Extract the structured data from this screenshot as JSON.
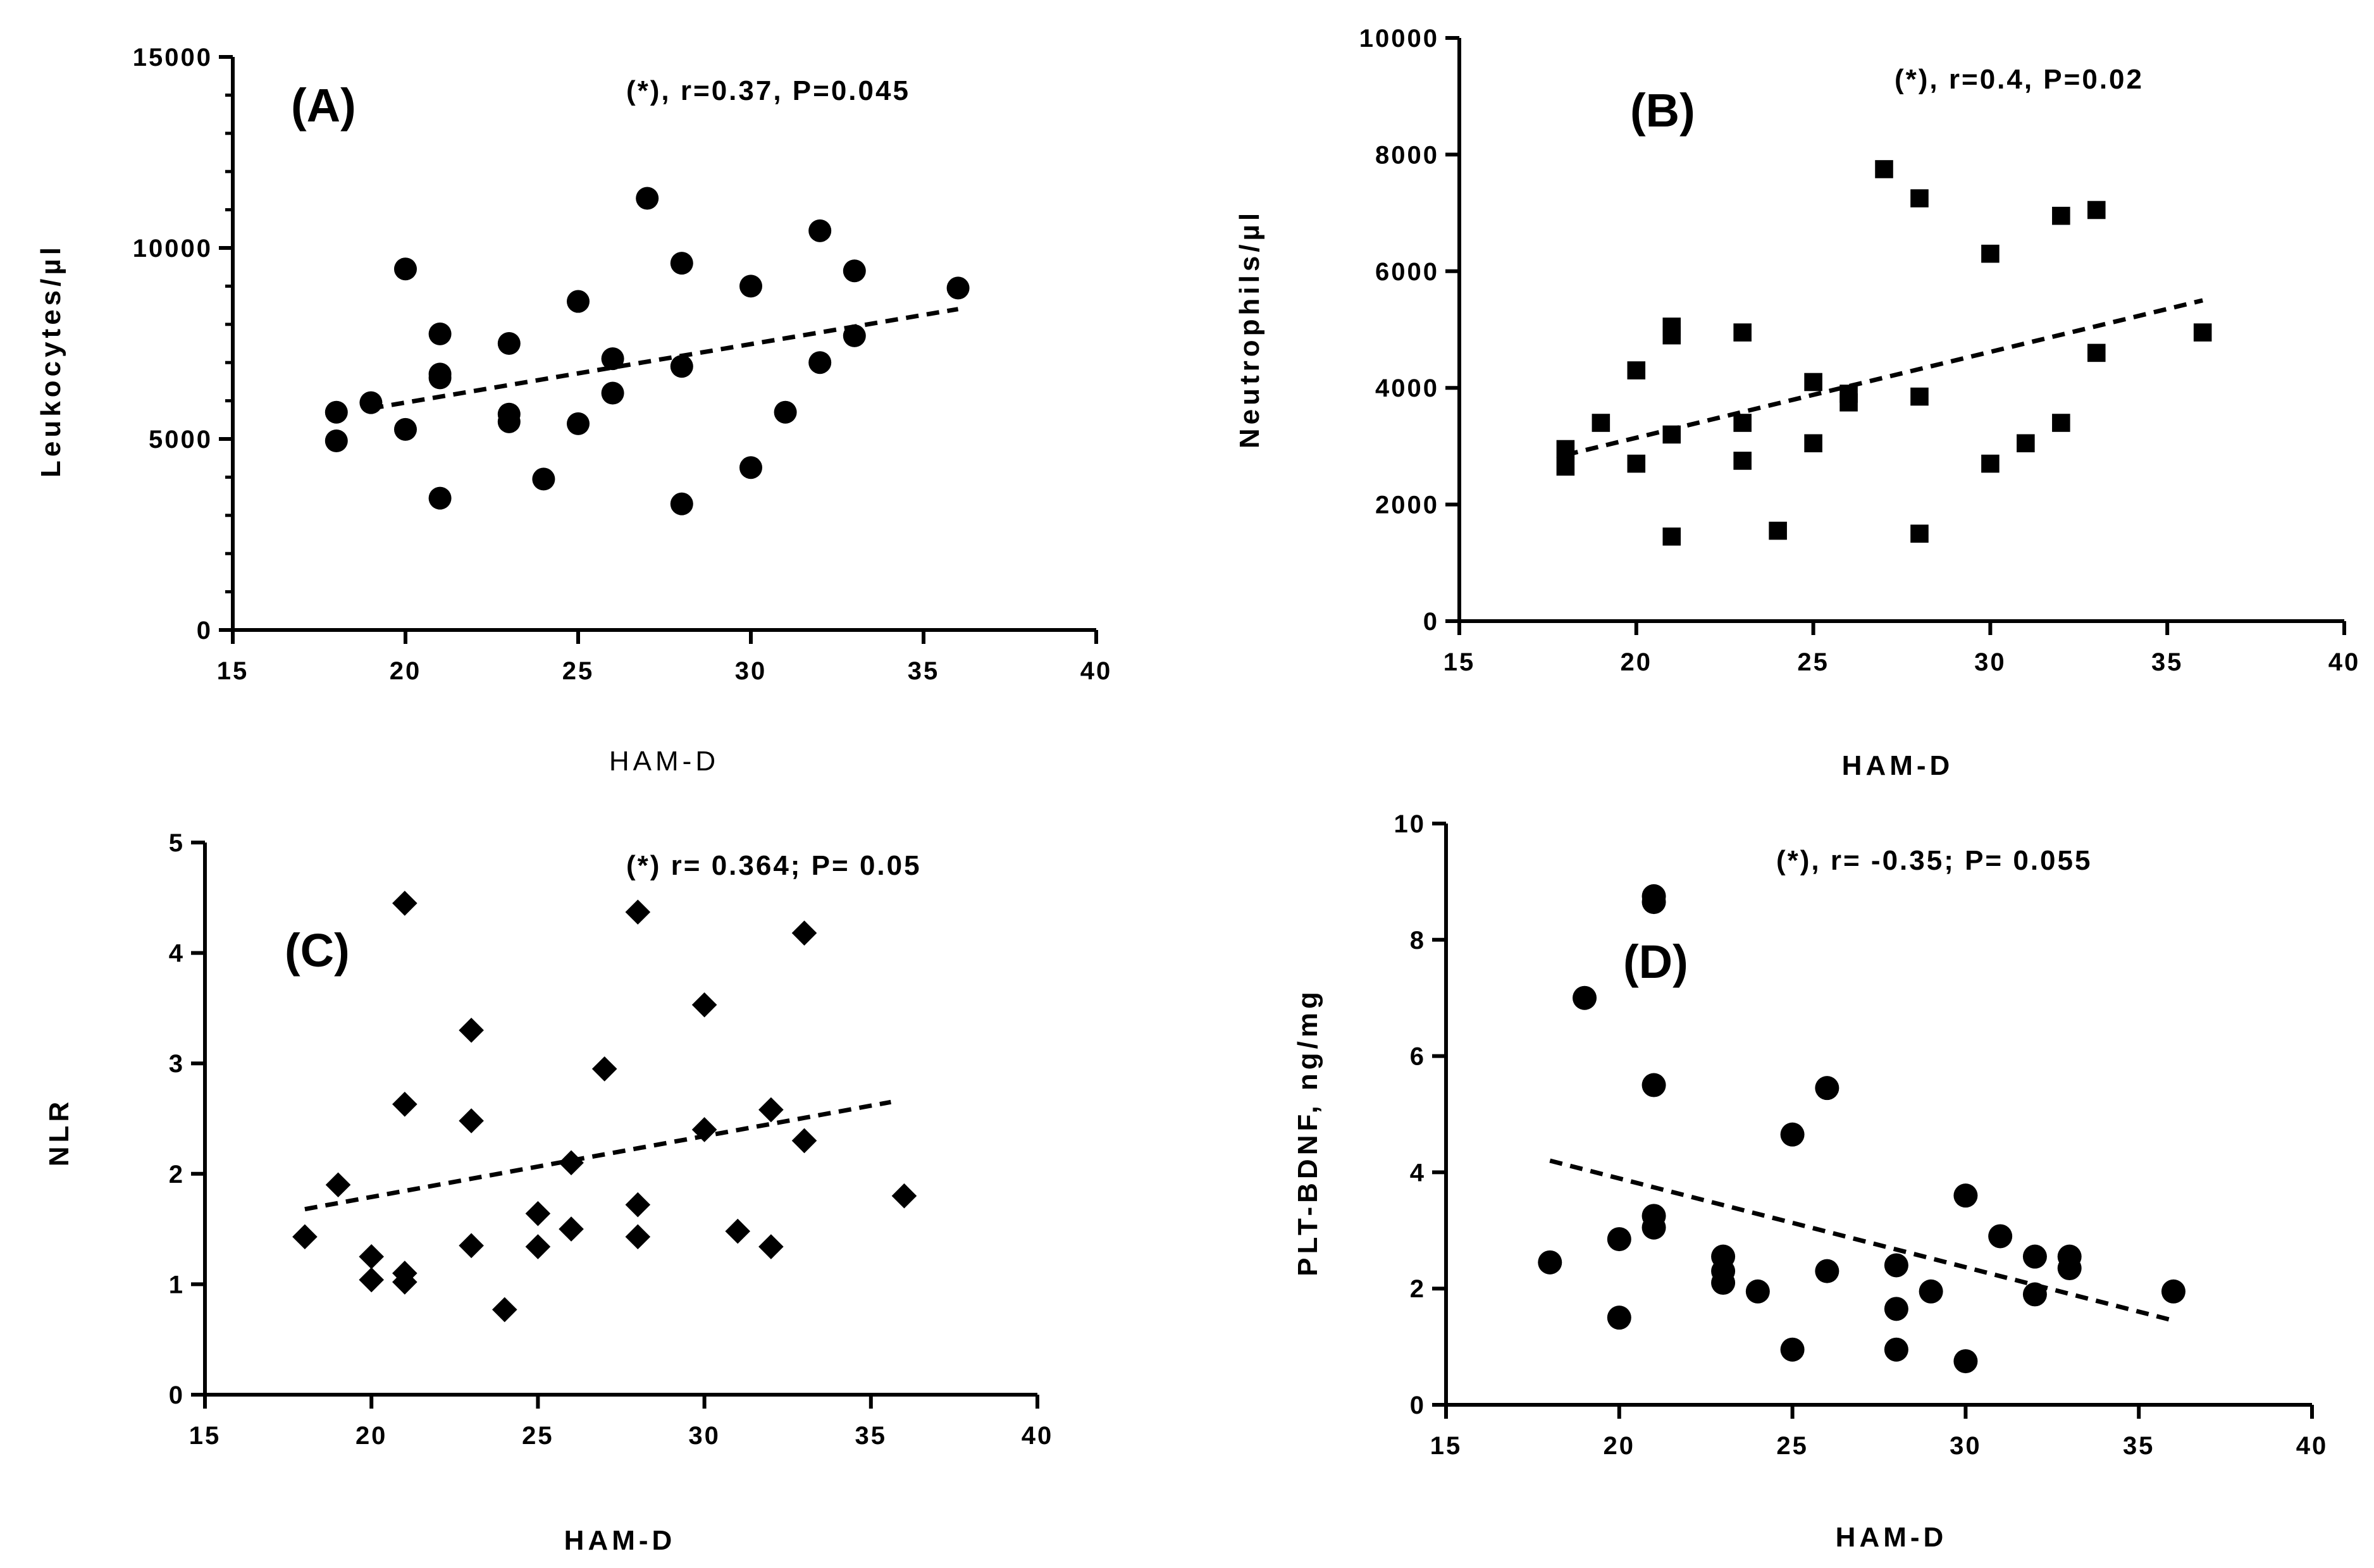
{
  "chart_data": [
    {
      "type": "scatter",
      "panel_label": "(A)",
      "annotation": "(*), r=0.37, P=0.045",
      "xlabel": "HAM-D",
      "ylabel": "Leukocytes/µl",
      "xlim": [
        15,
        40
      ],
      "ylim": [
        0,
        15000
      ],
      "xticks": [
        15,
        20,
        25,
        30,
        35,
        40
      ],
      "yticks": [
        0,
        5000,
        10000,
        15000
      ],
      "marker": "circle",
      "trendline": {
        "x": [
          19,
          36
        ],
        "y": [
          5800,
          8400
        ]
      },
      "points": [
        [
          18,
          5700
        ],
        [
          18,
          4950
        ],
        [
          19,
          5950
        ],
        [
          20,
          9450
        ],
        [
          20,
          5250
        ],
        [
          21,
          7750
        ],
        [
          21,
          6700
        ],
        [
          21,
          6600
        ],
        [
          21,
          3450
        ],
        [
          23,
          7500
        ],
        [
          23,
          5650
        ],
        [
          23,
          5450
        ],
        [
          24,
          3950
        ],
        [
          25,
          8600
        ],
        [
          25,
          5400
        ],
        [
          26,
          7100
        ],
        [
          26,
          6200
        ],
        [
          27,
          11300
        ],
        [
          28,
          9600
        ],
        [
          28,
          6900
        ],
        [
          28,
          3300
        ],
        [
          30,
          9000
        ],
        [
          30,
          4250
        ],
        [
          31,
          5700
        ],
        [
          32,
          10450
        ],
        [
          32,
          7000
        ],
        [
          33,
          9400
        ],
        [
          33,
          7700
        ],
        [
          36,
          8950
        ]
      ]
    },
    {
      "type": "scatter",
      "panel_label": "(B)",
      "annotation": "(*), r=0.4, P=0.02",
      "xlabel": "HAM-D",
      "ylabel": "Neutrophils/µl",
      "xlim": [
        15,
        40
      ],
      "ylim": [
        0,
        10000
      ],
      "xticks": [
        15,
        20,
        25,
        30,
        35,
        40
      ],
      "yticks": [
        0,
        2000,
        4000,
        6000,
        8000,
        10000
      ],
      "marker": "square",
      "trendline": {
        "x": [
          18,
          36
        ],
        "y": [
          2850,
          5500
        ]
      },
      "points": [
        [
          18,
          2950
        ],
        [
          18,
          2650
        ],
        [
          19,
          3400
        ],
        [
          20,
          4300
        ],
        [
          20,
          2700
        ],
        [
          21,
          5050
        ],
        [
          21,
          4900
        ],
        [
          21,
          3200
        ],
        [
          21,
          1450
        ],
        [
          23,
          4950
        ],
        [
          23,
          3400
        ],
        [
          23,
          2750
        ],
        [
          24,
          1550
        ],
        [
          25,
          4100
        ],
        [
          25,
          3050
        ],
        [
          26,
          3900
        ],
        [
          26,
          3750
        ],
        [
          27,
          7750
        ],
        [
          28,
          7250
        ],
        [
          28,
          3850
        ],
        [
          28,
          1500
        ],
        [
          30,
          6300
        ],
        [
          30,
          2700
        ],
        [
          31,
          3050
        ],
        [
          32,
          6950
        ],
        [
          32,
          3400
        ],
        [
          33,
          7050
        ],
        [
          33,
          4600
        ],
        [
          36,
          4950
        ]
      ]
    },
    {
      "type": "scatter",
      "panel_label": "(C)",
      "annotation": "(*) r= 0.364; P= 0.05",
      "xlabel": "HAM-D",
      "ylabel": "NLR",
      "xlim": [
        15,
        40
      ],
      "ylim": [
        0,
        5
      ],
      "xticks": [
        15,
        20,
        25,
        30,
        35,
        40
      ],
      "yticks": [
        0,
        1,
        2,
        3,
        4,
        5
      ],
      "marker": "diamond",
      "trendline": {
        "x": [
          18,
          35.6
        ],
        "y": [
          1.68,
          2.65
        ]
      },
      "points": [
        [
          18,
          1.43
        ],
        [
          19,
          1.9
        ],
        [
          20,
          1.25
        ],
        [
          20,
          1.04
        ],
        [
          21,
          4.45
        ],
        [
          21,
          2.63
        ],
        [
          21,
          1.1
        ],
        [
          21,
          1.02
        ],
        [
          23,
          3.3
        ],
        [
          23,
          2.48
        ],
        [
          23,
          1.35
        ],
        [
          24,
          0.77
        ],
        [
          25,
          1.64
        ],
        [
          25,
          1.34
        ],
        [
          26,
          2.1
        ],
        [
          26,
          1.5
        ],
        [
          27,
          2.95
        ],
        [
          28,
          4.37
        ],
        [
          28,
          1.72
        ],
        [
          28,
          1.43
        ],
        [
          30,
          3.53
        ],
        [
          30,
          2.4
        ],
        [
          31,
          1.48
        ],
        [
          32,
          2.58
        ],
        [
          32,
          1.34
        ],
        [
          33,
          4.18
        ],
        [
          33,
          2.3
        ],
        [
          36,
          1.8
        ]
      ]
    },
    {
      "type": "scatter",
      "panel_label": "(D)",
      "annotation": "(*), r= -0.35; P= 0.055",
      "xlabel": "HAM-D",
      "ylabel": "PLT-BDNF, ng/mg",
      "xlim": [
        15,
        40
      ],
      "ylim": [
        0,
        10
      ],
      "xticks": [
        15,
        20,
        25,
        30,
        35,
        40
      ],
      "yticks": [
        0,
        2,
        4,
        6,
        8,
        10
      ],
      "marker": "circle",
      "trendline": {
        "x": [
          18,
          36
        ],
        "y": [
          4.2,
          1.45
        ]
      },
      "points": [
        [
          18,
          2.45
        ],
        [
          19,
          7.0
        ],
        [
          20,
          2.85
        ],
        [
          20,
          1.5
        ],
        [
          21,
          8.75
        ],
        [
          21,
          8.65
        ],
        [
          21,
          5.5
        ],
        [
          21,
          3.25
        ],
        [
          21,
          3.05
        ],
        [
          23,
          2.55
        ],
        [
          23,
          2.3
        ],
        [
          23,
          2.1
        ],
        [
          24,
          1.95
        ],
        [
          25,
          4.65
        ],
        [
          25,
          0.95
        ],
        [
          26,
          5.45
        ],
        [
          26,
          2.3
        ],
        [
          28,
          2.4
        ],
        [
          28,
          1.65
        ],
        [
          28,
          0.95
        ],
        [
          29,
          1.95
        ],
        [
          30,
          3.6
        ],
        [
          30,
          0.75
        ],
        [
          31,
          2.9
        ],
        [
          32,
          2.55
        ],
        [
          32,
          1.9
        ],
        [
          33,
          2.55
        ],
        [
          33,
          2.35
        ],
        [
          36,
          1.95
        ]
      ]
    }
  ]
}
